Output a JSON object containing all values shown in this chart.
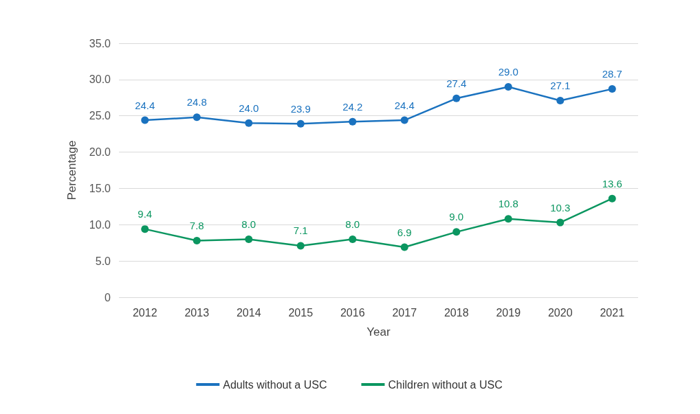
{
  "chart_data": {
    "type": "line",
    "xlabel": "Year",
    "ylabel": "Percentage",
    "categories": [
      "2012",
      "2013",
      "2014",
      "2015",
      "2016",
      "2017",
      "2018",
      "2019",
      "2020",
      "2021"
    ],
    "series": [
      {
        "name": "Adults without a USC",
        "color": "#1a72bf",
        "values": [
          24.4,
          24.8,
          24.0,
          23.9,
          24.2,
          24.4,
          27.4,
          29.0,
          27.1,
          28.7
        ],
        "value_labels": [
          "24.4",
          "24.8",
          "24.0",
          "23.9",
          "24.2",
          "24.4",
          "27.4",
          "29.0",
          "27.1",
          "28.7"
        ]
      },
      {
        "name": "Children without a USC",
        "color": "#0b9660",
        "values": [
          9.4,
          7.8,
          8.0,
          7.1,
          8.0,
          6.9,
          9.0,
          10.8,
          10.3,
          13.6
        ],
        "value_labels": [
          "9.4",
          "7.8",
          "8.0",
          "7.1",
          "8.0",
          "6.9",
          "9.0",
          "10.8",
          "10.3",
          "13.6"
        ]
      }
    ],
    "ylim": [
      0,
      35
    ],
    "yticks": [
      0,
      {
        "value": 5,
        "label": "5.0"
      },
      {
        "value": 10,
        "label": "10.0"
      },
      {
        "value": 15,
        "label": "15.0"
      },
      {
        "value": 20,
        "label": "20.0"
      },
      {
        "value": 25,
        "label": "25.0"
      },
      {
        "value": 30,
        "label": "30.0"
      },
      {
        "value": 35,
        "label": "35.0"
      }
    ],
    "grid": "y",
    "legend": "bottom",
    "marker": "circle",
    "line_style": "solid"
  }
}
